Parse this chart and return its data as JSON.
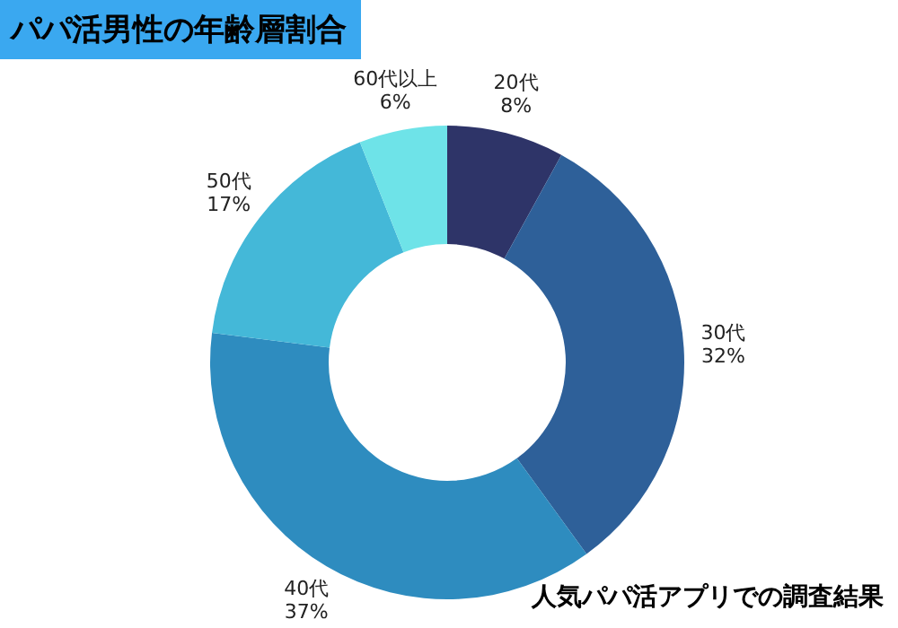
{
  "chart_data": {
    "type": "donut",
    "title": "パパ活男性の年齢層割合",
    "categories": [
      "20代",
      "30代",
      "40代",
      "50代",
      "60代以上"
    ],
    "values": [
      8,
      32,
      37,
      17,
      6
    ],
    "value_labels": [
      "8%",
      "32%",
      "37%",
      "17%",
      "6%"
    ],
    "colors": [
      "#2e3468",
      "#2e6099",
      "#2e8cbf",
      "#44b8d8",
      "#6ee3e8"
    ],
    "annotations": [
      "人気パパ活アプリでの調査結果"
    ],
    "legend": false
  }
}
